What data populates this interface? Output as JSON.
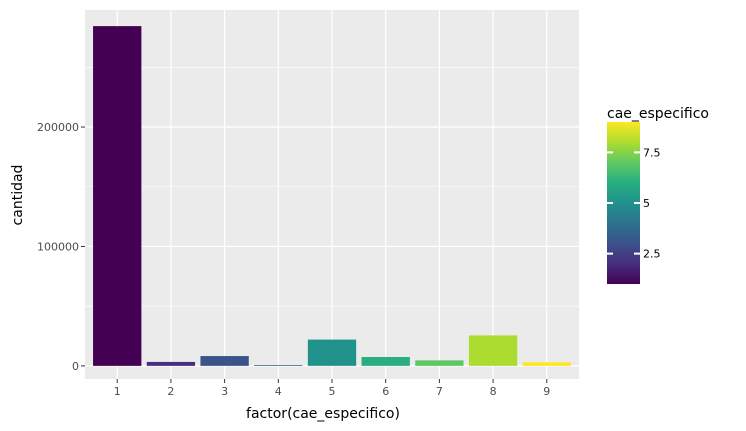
{
  "chart_data": {
    "type": "bar",
    "xlabel": "factor(cae_especifico)",
    "ylabel": "cantidad",
    "categories": [
      "1",
      "2",
      "3",
      "4",
      "5",
      "6",
      "7",
      "8",
      "9"
    ],
    "values": [
      284500,
      3300,
      8200,
      600,
      22000,
      7400,
      4600,
      25500,
      3000
    ],
    "fill_values": [
      1,
      2,
      3,
      4,
      5,
      6,
      7,
      8,
      9
    ],
    "bar_colors": [
      "#440154",
      "#472d7b",
      "#3b528b",
      "#2c728e",
      "#21918c",
      "#28ae80",
      "#5ec962",
      "#addc30",
      "#fde725"
    ],
    "ylim": [
      -11000,
      298000
    ],
    "y_ticks": [
      0,
      100000,
      200000
    ],
    "y_tick_labels": [
      "0",
      "100000",
      "200000"
    ],
    "grid": true,
    "panel_background": "#ebebeb",
    "legend": {
      "title": "cae_especifico",
      "placement": "right",
      "range": [
        1,
        9
      ],
      "ticks": [
        2.5,
        5,
        7.5
      ],
      "tick_labels": [
        "2.5",
        "5",
        "7.5"
      ],
      "colormap": "viridis"
    }
  }
}
